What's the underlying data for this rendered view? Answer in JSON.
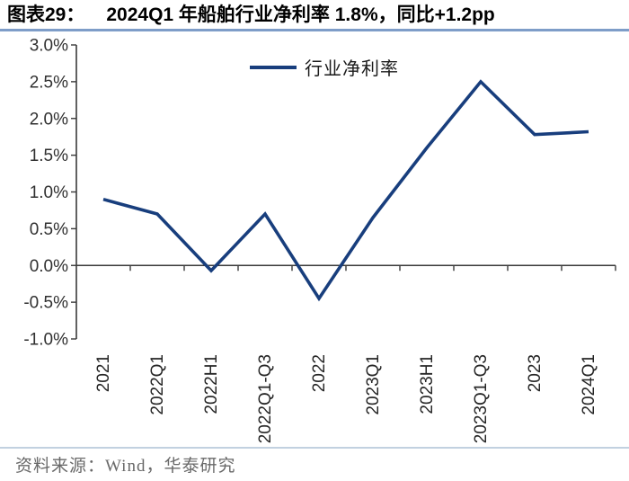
{
  "header": {
    "figure_label": "图表29：",
    "title": "2024Q1 年船舶行业净利率 1.8%，同比+1.2pp"
  },
  "chart_data": {
    "type": "line",
    "title": "",
    "xlabel": "",
    "ylabel": "",
    "categories": [
      "2021",
      "2022Q1",
      "2022H1",
      "2022Q1-Q3",
      "2022",
      "2023Q1",
      "2023H1",
      "2023Q1-Q3",
      "2023",
      "2024Q1"
    ],
    "series": [
      {
        "name": "行业净利率",
        "values": [
          0.9,
          0.7,
          -0.07,
          0.7,
          -0.45,
          0.65,
          1.6,
          2.5,
          1.78,
          1.82
        ]
      }
    ],
    "ylim": [
      -1.0,
      3.0
    ],
    "ytick_step": 0.5,
    "ytick_labels": [
      "3.0%",
      "2.5%",
      "2.0%",
      "1.5%",
      "1.0%",
      "0.5%",
      "0.0%",
      "-0.5%",
      "-1.0%"
    ],
    "grid": false,
    "legend_position": "top-center",
    "line_color": "#183E7D"
  },
  "footer": {
    "source": "资料来源：Wind，华泰研究"
  },
  "colors": {
    "accent_line": "#183E7D",
    "title_rule": "#7E9DC8",
    "footer_rule": "#C2D1E0",
    "axis": "#3A3A3A",
    "y_label_text": "#303030",
    "x_label_text": "#262626"
  }
}
